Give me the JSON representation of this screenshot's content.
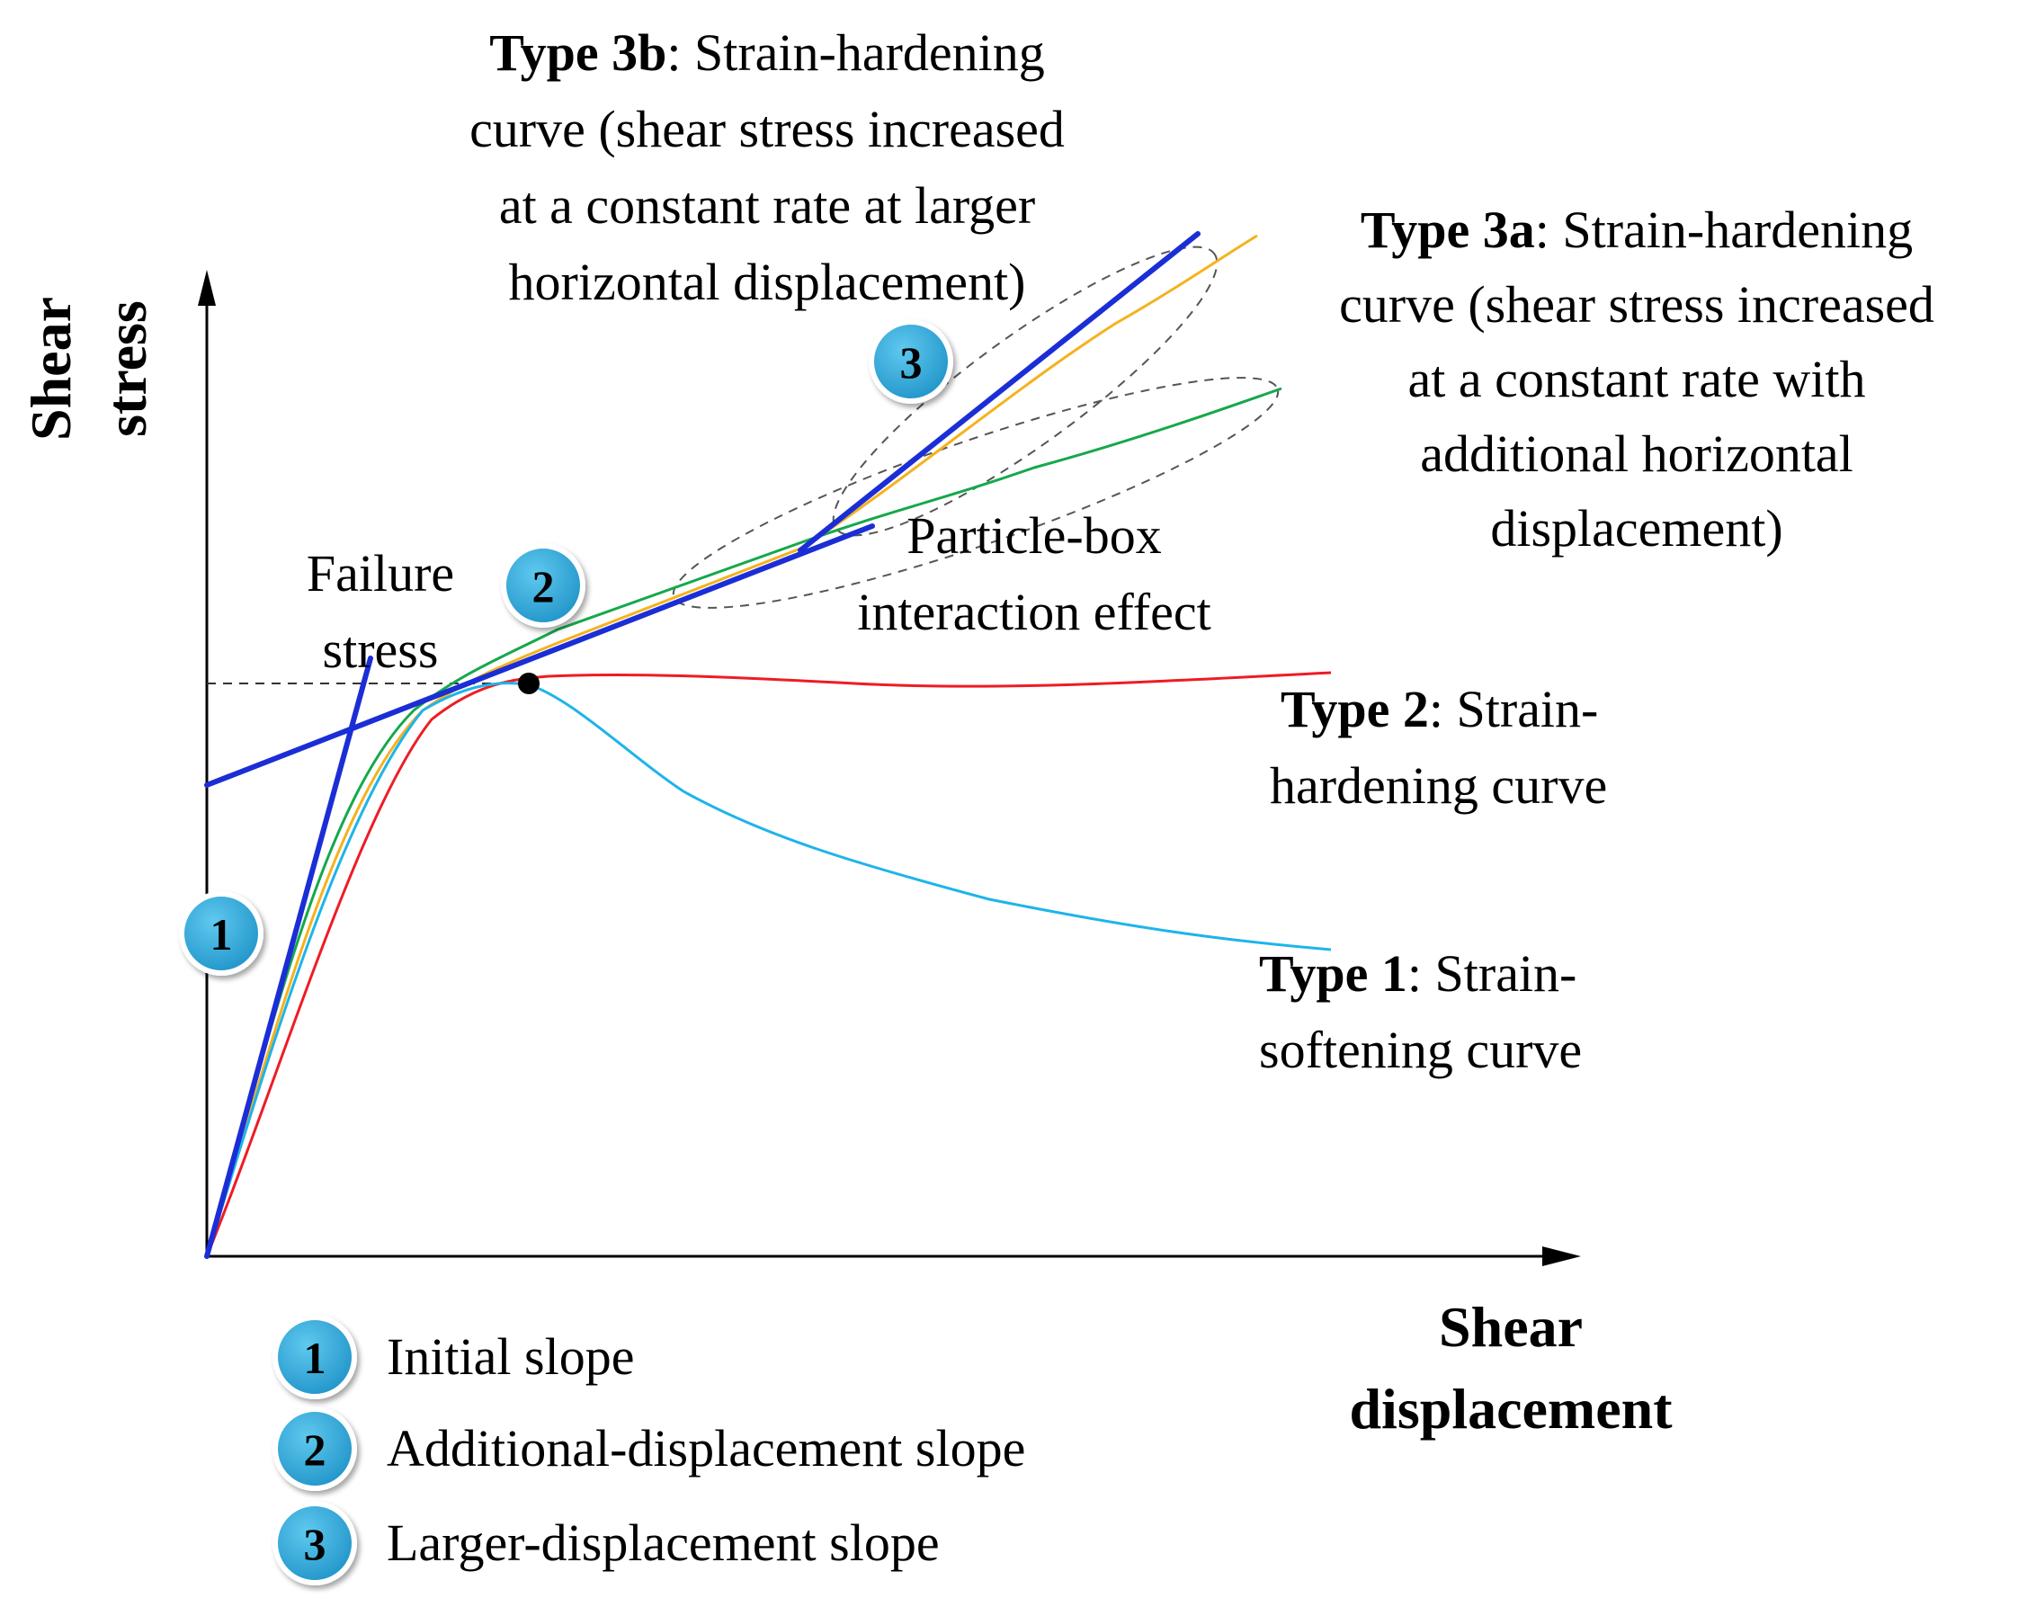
{
  "axes": {
    "y_title_line1": "Shear",
    "y_title_line2": "stress",
    "x_title_line1": "Shear",
    "x_title_line2": "displacement"
  },
  "labels": {
    "type3b": {
      "bold": "Type 3b",
      "rest": ": Strain-hardening",
      "line2": "curve (shear stress increased",
      "line3": "at a constant rate at larger",
      "line4": "horizontal displacement)"
    },
    "type3a": {
      "bold": "Type 3a",
      "rest": ": Strain-hardening",
      "line2": "curve (shear stress increased",
      "line3": "at a constant rate with",
      "line4": "additional horizontal",
      "line5": "displacement)"
    },
    "type2": {
      "bold": "Type 2",
      "rest": ": Strain-",
      "line2": "hardening curve"
    },
    "type1": {
      "bold": "Type 1",
      "rest": ": Strain-",
      "line2": "softening curve"
    },
    "failure_line1": "Failure",
    "failure_line2": "stress",
    "particle_line1": "Particle-box",
    "particle_line2": "interaction effect"
  },
  "badges": {
    "b1": "1",
    "b2": "2",
    "b3": "3"
  },
  "legend": [
    {
      "num": "1",
      "text": "Initial slope"
    },
    {
      "num": "2",
      "text": "Additional-displacement slope"
    },
    {
      "num": "3",
      "text": "Larger-displacement slope"
    }
  ],
  "colors": {
    "type1": "#1eb4ea",
    "type2": "#ee1c24",
    "type3a": "#f5b21d",
    "type3a_green": "#15a84b",
    "slope": "#1b2ed6",
    "badge": "#2aa6d8"
  }
}
